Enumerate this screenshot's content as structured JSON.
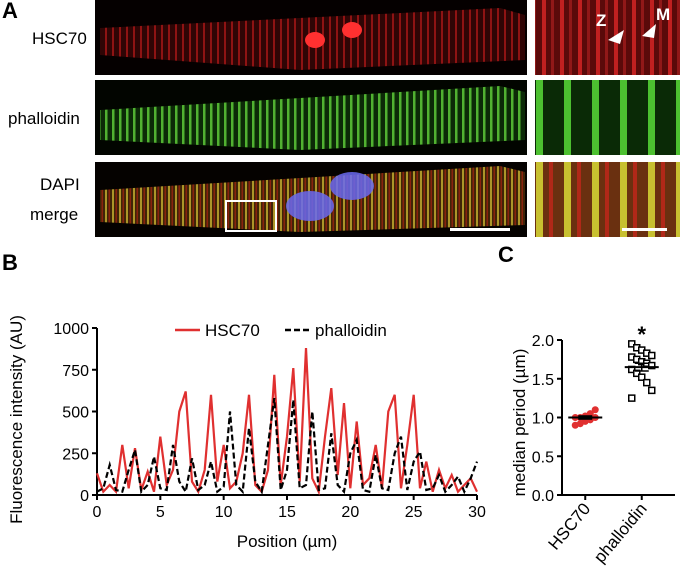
{
  "panel_a": {
    "label": "A",
    "rows": [
      "HSC70",
      "phalloidin",
      "DAPI",
      "merge"
    ],
    "inset_marks": [
      "Z",
      "M"
    ]
  },
  "chart_data": [
    {
      "type": "line",
      "label": "B",
      "xlabel": "Position (µm)",
      "ylabel": "Fluorescence intensity (AU)",
      "xlim": [
        0,
        30
      ],
      "ylim": [
        0,
        1000
      ],
      "xticks": [
        0,
        5,
        10,
        15,
        20,
        25,
        30
      ],
      "yticks": [
        0,
        250,
        500,
        750,
        1000
      ],
      "x": [
        0,
        0.5,
        1,
        1.5,
        2,
        2.5,
        3,
        3.5,
        4,
        4.5,
        5,
        5.5,
        6,
        6.5,
        7,
        7.5,
        8,
        8.5,
        9,
        9.5,
        10,
        10.5,
        11,
        11.5,
        12,
        12.5,
        13,
        13.5,
        14,
        14.5,
        15,
        15.5,
        16,
        16.5,
        17,
        17.5,
        18,
        18.5,
        19,
        19.5,
        20,
        20.5,
        21,
        21.5,
        22,
        22.5,
        23,
        23.5,
        24,
        24.5,
        25,
        25.5,
        26,
        26.5,
        27,
        27.5,
        28,
        28.5,
        29,
        29.5,
        30
      ],
      "series": [
        {
          "name": "HSC70",
          "color": "#e03030",
          "dash": false,
          "values": [
            130,
            20,
            60,
            20,
            300,
            40,
            280,
            30,
            140,
            20,
            350,
            60,
            150,
            500,
            620,
            80,
            20,
            150,
            600,
            80,
            300,
            40,
            80,
            250,
            600,
            60,
            20,
            150,
            720,
            60,
            350,
            760,
            80,
            880,
            100,
            20,
            350,
            640,
            120,
            550,
            40,
            440,
            60,
            100,
            300,
            40,
            500,
            600,
            40,
            300,
            600,
            40,
            200,
            20,
            150,
            40,
            120,
            20,
            60,
            100,
            20
          ]
        },
        {
          "name": "phalloidin",
          "color": "#000000",
          "dash": true,
          "values": [
            20,
            40,
            180,
            30,
            20,
            150,
            270,
            20,
            60,
            230,
            40,
            30,
            300,
            80,
            20,
            220,
            30,
            60,
            200,
            20,
            50,
            500,
            60,
            20,
            400,
            80,
            20,
            300,
            580,
            30,
            150,
            570,
            40,
            60,
            500,
            30,
            40,
            370,
            60,
            20,
            250,
            330,
            30,
            20,
            240,
            40,
            30,
            250,
            350,
            30,
            200,
            260,
            30,
            40,
            120,
            20,
            60,
            110,
            20,
            100,
            200
          ]
        }
      ]
    },
    {
      "type": "scatter",
      "label": "C",
      "ylabel": "median period (µm)",
      "categories": [
        "HSC70",
        "phalloidin"
      ],
      "ylim": [
        0,
        2
      ],
      "yticks": [
        {
          "value": 0,
          "label": "0.0"
        },
        {
          "value": 0.5,
          "label": "0.5"
        },
        {
          "value": 1,
          "label": "1.0"
        },
        {
          "value": 1.5,
          "label": "1.5"
        },
        {
          "value": 2,
          "label": "2.0"
        }
      ],
      "series": [
        {
          "name": "HSC70",
          "color": "#e03030",
          "values": [
            0.9,
            0.92,
            0.95,
            0.97,
            1.0,
            1.0,
            1.0,
            1.02,
            1.05,
            1.1
          ]
        },
        {
          "name": "phalloidin",
          "color": "#000000",
          "values": [
            1.95,
            1.9,
            1.87,
            1.83,
            1.8,
            1.78,
            1.75,
            1.72,
            1.7,
            1.67,
            1.62,
            1.57,
            1.52,
            1.45,
            1.35,
            1.25
          ]
        }
      ],
      "means": [
        1.0,
        1.65
      ],
      "errors": [
        0.02,
        0.05
      ],
      "annotation": "*"
    }
  ]
}
